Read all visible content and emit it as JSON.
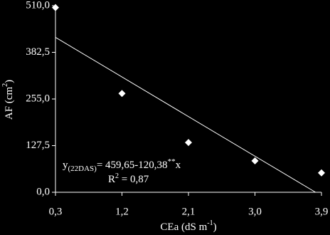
{
  "chart_data": {
    "type": "scatter",
    "x_label": [
      "CEa (dS m",
      "-1",
      ")"
    ],
    "y_label": [
      "AF (cm",
      "2",
      ")"
    ],
    "equation": [
      "y",
      "(22DAS)",
      "= 459,65-120,38",
      "**",
      "x"
    ],
    "r_squared": [
      "R",
      "2",
      " = 0,87"
    ],
    "series": [
      {
        "color": "#ffffff",
        "x": [
          0.3,
          1.2,
          2.1,
          3.0,
          3.9
        ],
        "values": [
          505,
          270,
          136,
          86,
          53
        ]
      }
    ],
    "trendline": {
      "color": "#ffffff",
      "x": [
        0.3,
        3.82
      ],
      "values": [
        423.5,
        0
      ]
    },
    "xlim": [
      0.3,
      3.9
    ],
    "xticks": [
      {
        "value": 0.3,
        "label": "0,3"
      },
      {
        "value": 1.2,
        "label": "1,2"
      },
      {
        "value": 2.1,
        "label": "2,1"
      },
      {
        "value": 3.0,
        "label": "3,0"
      },
      {
        "value": 3.9,
        "label": "3,9"
      }
    ],
    "ylim": [
      0,
      510
    ],
    "yticks": [
      {
        "value": 0,
        "label": "0,0"
      },
      {
        "value": 127.5,
        "label": "127,5"
      },
      {
        "value": 255,
        "label": "255,0"
      },
      {
        "value": 382.5,
        "label": "382,5"
      },
      {
        "value": 510,
        "label": "510,0"
      }
    ],
    "grid": false
  }
}
